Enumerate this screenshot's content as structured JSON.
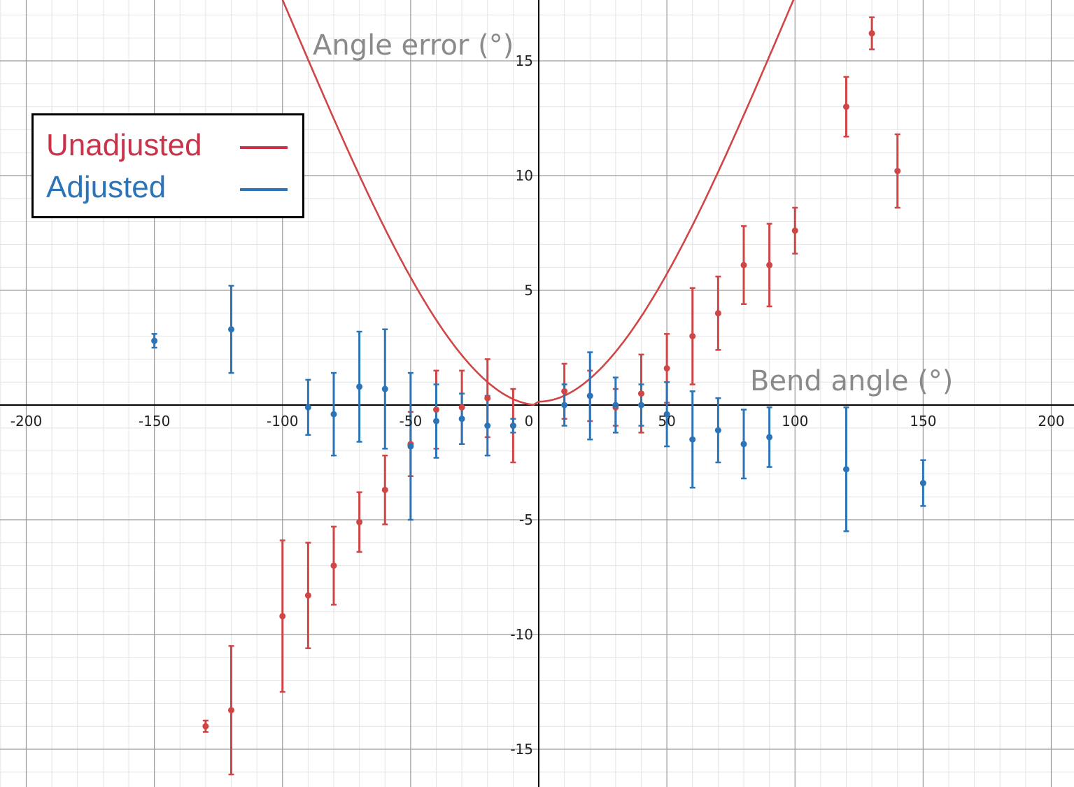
{
  "chart_data": {
    "type": "scatter",
    "xlabel": "Bend angle (°)",
    "ylabel": "Angle error (°)",
    "xlim": [
      -210,
      208
    ],
    "ylim": [
      -16.5,
      17.6
    ],
    "x_ticks": [
      -200,
      -150,
      -100,
      -50,
      0,
      50,
      100,
      150,
      200
    ],
    "y_ticks": [
      -15,
      -10,
      -5,
      5,
      10,
      15
    ],
    "x_tick_labels": [
      "-200",
      "-150",
      "-100",
      "-50",
      "0",
      "50",
      "100",
      "150",
      "200"
    ],
    "y_tick_labels": [
      "-15",
      "-10",
      "-5",
      "5",
      "10",
      "15"
    ],
    "grid": true,
    "legend": {
      "position": "top-left",
      "entries": [
        {
          "label": "Unadjusted",
          "color": "#c8334a"
        },
        {
          "label": "Adjusted",
          "color": "#2b74b8"
        }
      ]
    },
    "series": [
      {
        "name": "Unadjusted",
        "color": "#d04545",
        "points": [
          {
            "x": -130,
            "y": -14.0,
            "err": 0.25
          },
          {
            "x": -120,
            "y": -13.3,
            "err": 2.8
          },
          {
            "x": -100,
            "y": -9.2,
            "err": 3.3
          },
          {
            "x": -90,
            "y": -8.3,
            "err": 2.3
          },
          {
            "x": -80,
            "y": -7.0,
            "err": 1.7
          },
          {
            "x": -70,
            "y": -5.1,
            "err": 1.3
          },
          {
            "x": -60,
            "y": -3.7,
            "err": 1.5
          },
          {
            "x": -50,
            "y": -1.7,
            "err": 1.4
          },
          {
            "x": -40,
            "y": -0.2,
            "err": 1.7
          },
          {
            "x": -30,
            "y": -0.1,
            "err": 1.6
          },
          {
            "x": -20,
            "y": 0.3,
            "err": 1.7
          },
          {
            "x": -10,
            "y": -0.9,
            "err": 1.6
          },
          {
            "x": 10,
            "y": 0.6,
            "err": 1.2
          },
          {
            "x": 20,
            "y": 0.4,
            "err": 1.1
          },
          {
            "x": 30,
            "y": -0.1,
            "err": 0.8
          },
          {
            "x": 40,
            "y": 0.5,
            "err": 1.7
          },
          {
            "x": 50,
            "y": 1.6,
            "err": 1.5
          },
          {
            "x": 60,
            "y": 3.0,
            "err": 2.1
          },
          {
            "x": 70,
            "y": 4.0,
            "err": 1.6
          },
          {
            "x": 80,
            "y": 6.1,
            "err": 1.7
          },
          {
            "x": 90,
            "y": 6.1,
            "err": 1.8
          },
          {
            "x": 100,
            "y": 7.6,
            "err": 1.0
          },
          {
            "x": 120,
            "y": 13.0,
            "err": 1.3
          },
          {
            "x": 130,
            "y": 16.2,
            "err": 0.7
          },
          {
            "x": 140,
            "y": 10.2,
            "err": 1.6
          }
        ],
        "fit_curve": "cubic"
      },
      {
        "name": "Adjusted",
        "color": "#2b74b8",
        "points": [
          {
            "x": -150,
            "y": 2.8,
            "err": 0.3
          },
          {
            "x": -120,
            "y": 3.3,
            "err": 1.9
          },
          {
            "x": -90,
            "y": -0.1,
            "err": 1.2
          },
          {
            "x": -80,
            "y": -0.4,
            "err": 1.8
          },
          {
            "x": -70,
            "y": 0.8,
            "err": 2.4
          },
          {
            "x": -60,
            "y": 0.7,
            "err": 2.6
          },
          {
            "x": -50,
            "y": -1.8,
            "err": 3.2
          },
          {
            "x": -40,
            "y": -0.7,
            "err": 1.6
          },
          {
            "x": -30,
            "y": -0.6,
            "err": 1.1
          },
          {
            "x": -20,
            "y": -0.9,
            "err": 1.3
          },
          {
            "x": -10,
            "y": -0.9,
            "err": 0.3
          },
          {
            "x": 10,
            "y": 0.0,
            "err": 0.9
          },
          {
            "x": 20,
            "y": 0.4,
            "err": 1.9
          },
          {
            "x": 30,
            "y": 0.0,
            "err": 1.2
          },
          {
            "x": 40,
            "y": 0.0,
            "err": 0.9
          },
          {
            "x": 50,
            "y": -0.4,
            "err": 1.4
          },
          {
            "x": 60,
            "y": -1.5,
            "err": 2.1
          },
          {
            "x": 70,
            "y": -1.1,
            "err": 1.4
          },
          {
            "x": 80,
            "y": -1.7,
            "err": 1.5
          },
          {
            "x": 90,
            "y": -1.4,
            "err": 1.3
          },
          {
            "x": 120,
            "y": -2.8,
            "err": 2.7
          },
          {
            "x": 150,
            "y": -3.4,
            "err": 1.0
          }
        ]
      }
    ]
  }
}
